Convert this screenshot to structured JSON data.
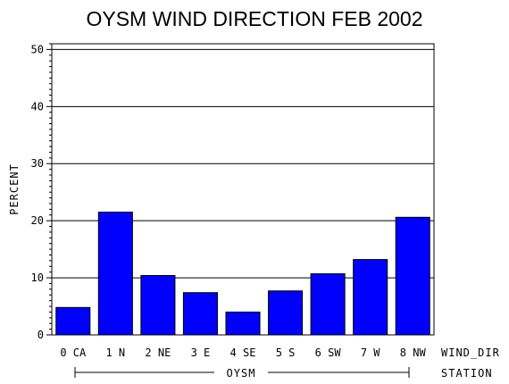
{
  "chart_data": {
    "type": "bar",
    "title": "OYSM WIND DIRECTION FEB 2002",
    "ylabel": "PERCENT",
    "xlabel": "WIND_DIR",
    "group_axis_label": "STATION",
    "group_label": "OYSM",
    "ylim": [
      0,
      51
    ],
    "yticks": [
      "0",
      "10",
      "20",
      "30",
      "40",
      "50"
    ],
    "grid": true,
    "categories": [
      "0 CA",
      "1 N",
      "2 NE",
      "3 E",
      "4 SE",
      "5 S",
      "6 SW",
      "7 W",
      "8 NW"
    ],
    "values": [
      4.8,
      21.5,
      10.4,
      7.4,
      4.0,
      7.7,
      10.7,
      13.2,
      20.6
    ],
    "bar_color": "#0000ff"
  }
}
